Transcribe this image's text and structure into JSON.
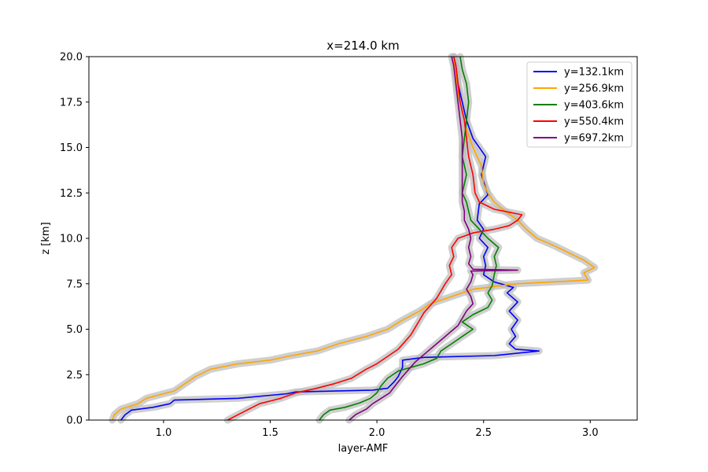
{
  "chart_data": {
    "type": "line",
    "title": "x=214.0 km",
    "xlabel": "layer-AMF",
    "ylabel": "z [km]",
    "xlim": [
      0.65,
      3.22
    ],
    "ylim": [
      0,
      20
    ],
    "xticks": [
      "1.0",
      "1.5",
      "2.0",
      "2.5",
      "3.0"
    ],
    "yticks": [
      "0.0",
      "2.5",
      "5.0",
      "7.5",
      "10.0",
      "12.5",
      "15.0",
      "17.5",
      "20.0"
    ],
    "legend_position": "top-right",
    "grid": false,
    "uncertainty_band_color": "#bfbfbf",
    "series": [
      {
        "name": "y=132.1km",
        "color": "#0000ff",
        "points": [
          [
            0.8,
            0
          ],
          [
            0.82,
            0.3
          ],
          [
            0.85,
            0.55
          ],
          [
            0.95,
            0.7
          ],
          [
            1.03,
            0.9
          ],
          [
            1.05,
            1.1
          ],
          [
            1.35,
            1.2
          ],
          [
            1.58,
            1.45
          ],
          [
            1.62,
            1.55
          ],
          [
            1.98,
            1.65
          ],
          [
            2.05,
            1.75
          ],
          [
            2.08,
            2.1
          ],
          [
            2.1,
            2.4
          ],
          [
            2.12,
            2.9
          ],
          [
            2.12,
            3.3
          ],
          [
            2.22,
            3.45
          ],
          [
            2.55,
            3.55
          ],
          [
            2.76,
            3.8
          ],
          [
            2.65,
            3.9
          ],
          [
            2.62,
            4.2
          ],
          [
            2.65,
            4.6
          ],
          [
            2.63,
            5.0
          ],
          [
            2.66,
            5.5
          ],
          [
            2.62,
            6.0
          ],
          [
            2.66,
            6.5
          ],
          [
            2.61,
            7.0
          ],
          [
            2.64,
            7.3
          ],
          [
            2.55,
            7.6
          ],
          [
            2.5,
            8.0
          ],
          [
            2.51,
            8.5
          ],
          [
            2.5,
            9.0
          ],
          [
            2.52,
            9.5
          ],
          [
            2.48,
            10.0
          ],
          [
            2.5,
            10.5
          ],
          [
            2.47,
            11.0
          ],
          [
            2.48,
            11.9
          ],
          [
            2.52,
            12.4
          ],
          [
            2.49,
            13.5
          ],
          [
            2.51,
            14.5
          ],
          [
            2.45,
            15.5
          ],
          [
            2.42,
            16.5
          ],
          [
            2.4,
            17.5
          ],
          [
            2.38,
            18.5
          ],
          [
            2.37,
            19.5
          ],
          [
            2.36,
            20
          ]
        ]
      },
      {
        "name": "y=256.9km",
        "color": "#ffa500",
        "points": [
          [
            0.76,
            0
          ],
          [
            0.77,
            0.3
          ],
          [
            0.8,
            0.6
          ],
          [
            0.88,
            0.9
          ],
          [
            0.92,
            1.2
          ],
          [
            1.05,
            1.6
          ],
          [
            1.1,
            2.0
          ],
          [
            1.15,
            2.4
          ],
          [
            1.22,
            2.8
          ],
          [
            1.35,
            3.1
          ],
          [
            1.5,
            3.3
          ],
          [
            1.58,
            3.5
          ],
          [
            1.72,
            3.8
          ],
          [
            1.82,
            4.2
          ],
          [
            1.95,
            4.6
          ],
          [
            2.05,
            5.0
          ],
          [
            2.12,
            5.5
          ],
          [
            2.2,
            6.0
          ],
          [
            2.25,
            6.4
          ],
          [
            2.35,
            6.8
          ],
          [
            2.45,
            7.2
          ],
          [
            2.65,
            7.5
          ],
          [
            2.99,
            7.7
          ],
          [
            2.97,
            8.1
          ],
          [
            3.02,
            8.4
          ],
          [
            2.97,
            8.8
          ],
          [
            2.9,
            9.2
          ],
          [
            2.83,
            9.6
          ],
          [
            2.75,
            10.0
          ],
          [
            2.7,
            10.5
          ],
          [
            2.66,
            11.0
          ],
          [
            2.6,
            11.5
          ],
          [
            2.55,
            12.0
          ],
          [
            2.52,
            12.5
          ],
          [
            2.5,
            13.0
          ],
          [
            2.49,
            14.0
          ],
          [
            2.45,
            15.0
          ],
          [
            2.42,
            16.0
          ],
          [
            2.4,
            17.0
          ],
          [
            2.38,
            18.0
          ],
          [
            2.37,
            19.0
          ],
          [
            2.36,
            20
          ]
        ]
      },
      {
        "name": "y=403.6km",
        "color": "#008000",
        "points": [
          [
            1.73,
            0
          ],
          [
            1.75,
            0.3
          ],
          [
            1.78,
            0.55
          ],
          [
            1.85,
            0.7
          ],
          [
            1.92,
            0.95
          ],
          [
            1.97,
            1.2
          ],
          [
            2.0,
            1.5
          ],
          [
            2.02,
            1.9
          ],
          [
            2.05,
            2.3
          ],
          [
            2.1,
            2.7
          ],
          [
            2.22,
            3.1
          ],
          [
            2.28,
            3.4
          ],
          [
            2.3,
            3.8
          ],
          [
            2.35,
            4.2
          ],
          [
            2.4,
            4.6
          ],
          [
            2.45,
            5.0
          ],
          [
            2.4,
            5.4
          ],
          [
            2.45,
            5.8
          ],
          [
            2.52,
            6.2
          ],
          [
            2.54,
            6.6
          ],
          [
            2.52,
            7.0
          ],
          [
            2.54,
            7.4
          ],
          [
            2.55,
            8.0
          ],
          [
            2.56,
            8.5
          ],
          [
            2.55,
            9.0
          ],
          [
            2.57,
            9.5
          ],
          [
            2.52,
            10.0
          ],
          [
            2.48,
            10.5
          ],
          [
            2.44,
            11.0
          ],
          [
            2.42,
            12.0
          ],
          [
            2.4,
            12.5
          ],
          [
            2.42,
            13.5
          ],
          [
            2.4,
            14.5
          ],
          [
            2.41,
            15.5
          ],
          [
            2.42,
            16.5
          ],
          [
            2.43,
            17.5
          ],
          [
            2.42,
            18.5
          ],
          [
            2.4,
            19.3
          ],
          [
            2.39,
            20
          ]
        ]
      },
      {
        "name": "y=550.4km",
        "color": "#ff0000",
        "points": [
          [
            1.3,
            0
          ],
          [
            1.35,
            0.3
          ],
          [
            1.4,
            0.6
          ],
          [
            1.45,
            0.9
          ],
          [
            1.55,
            1.2
          ],
          [
            1.62,
            1.5
          ],
          [
            1.7,
            1.7
          ],
          [
            1.8,
            2.0
          ],
          [
            1.88,
            2.3
          ],
          [
            1.95,
            2.8
          ],
          [
            2.0,
            3.1
          ],
          [
            2.05,
            3.5
          ],
          [
            2.1,
            3.9
          ],
          [
            2.13,
            4.3
          ],
          [
            2.16,
            4.7
          ],
          [
            2.18,
            5.1
          ],
          [
            2.2,
            5.5
          ],
          [
            2.22,
            5.9
          ],
          [
            2.25,
            6.3
          ],
          [
            2.28,
            6.7
          ],
          [
            2.3,
            7.1
          ],
          [
            2.32,
            7.5
          ],
          [
            2.35,
            8.0
          ],
          [
            2.34,
            8.5
          ],
          [
            2.36,
            9.0
          ],
          [
            2.35,
            9.5
          ],
          [
            2.38,
            10.0
          ],
          [
            2.45,
            10.3
          ],
          [
            2.55,
            10.5
          ],
          [
            2.62,
            10.7
          ],
          [
            2.66,
            11.0
          ],
          [
            2.68,
            11.3
          ],
          [
            2.55,
            11.6
          ],
          [
            2.48,
            12.0
          ],
          [
            2.46,
            12.5
          ],
          [
            2.45,
            13.5
          ],
          [
            2.43,
            14.5
          ],
          [
            2.42,
            15.5
          ],
          [
            2.41,
            16.5
          ],
          [
            2.39,
            17.5
          ],
          [
            2.38,
            18.5
          ],
          [
            2.37,
            19.5
          ],
          [
            2.36,
            20
          ]
        ]
      },
      {
        "name": "y=697.2km",
        "color": "#800080",
        "points": [
          [
            1.87,
            0
          ],
          [
            1.9,
            0.3
          ],
          [
            1.95,
            0.6
          ],
          [
            1.98,
            0.9
          ],
          [
            2.02,
            1.2
          ],
          [
            2.06,
            1.5
          ],
          [
            2.08,
            1.8
          ],
          [
            2.1,
            2.1
          ],
          [
            2.12,
            2.4
          ],
          [
            2.15,
            2.8
          ],
          [
            2.18,
            3.2
          ],
          [
            2.22,
            3.6
          ],
          [
            2.26,
            4.0
          ],
          [
            2.3,
            4.4
          ],
          [
            2.34,
            4.8
          ],
          [
            2.38,
            5.2
          ],
          [
            2.4,
            5.6
          ],
          [
            2.42,
            6.0
          ],
          [
            2.45,
            6.4
          ],
          [
            2.44,
            6.8
          ],
          [
            2.42,
            7.2
          ],
          [
            2.44,
            7.6
          ],
          [
            2.45,
            8.0
          ],
          [
            2.44,
            8.2
          ],
          [
            2.66,
            8.25
          ],
          [
            2.45,
            8.3
          ],
          [
            2.43,
            8.6
          ],
          [
            2.44,
            9.0
          ],
          [
            2.43,
            9.5
          ],
          [
            2.44,
            10.0
          ],
          [
            2.43,
            10.5
          ],
          [
            2.41,
            11.0
          ],
          [
            2.41,
            11.5
          ],
          [
            2.4,
            12.0
          ],
          [
            2.4,
            12.5
          ],
          [
            2.4,
            13.5
          ],
          [
            2.4,
            14.5
          ],
          [
            2.4,
            15.5
          ],
          [
            2.39,
            16.5
          ],
          [
            2.38,
            17.5
          ],
          [
            2.37,
            18.5
          ],
          [
            2.36,
            19.5
          ],
          [
            2.35,
            20
          ]
        ]
      }
    ]
  }
}
